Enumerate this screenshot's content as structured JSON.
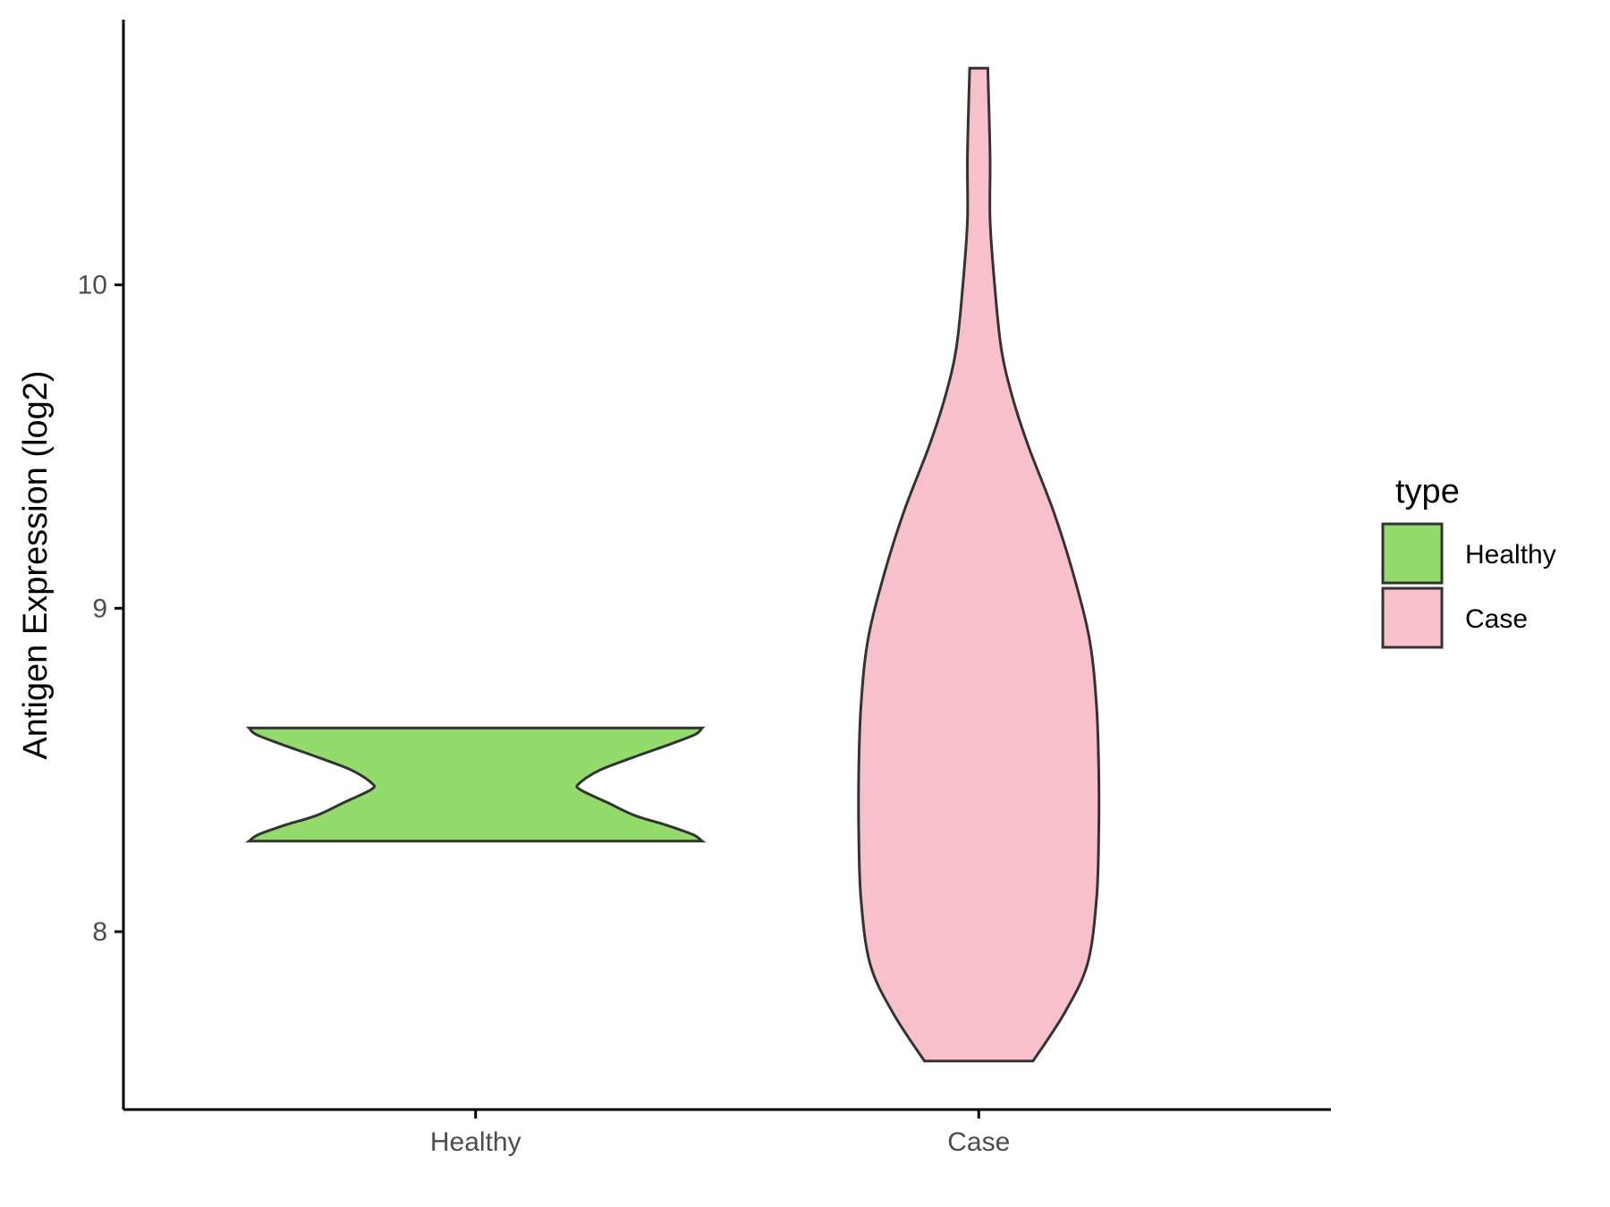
{
  "chart_data": {
    "type": "violin",
    "xlabel": "",
    "ylabel": "Antigen Expression (log2)",
    "categories": [
      "Healthy",
      "Case"
    ],
    "ylim": [
      7.45,
      10.82
    ],
    "yticks": [
      8,
      9,
      10
    ],
    "grid": false,
    "legend": {
      "title": "type",
      "position": "right",
      "entries": [
        {
          "label": "Healthy",
          "color": "#93DB6B"
        },
        {
          "label": "Case",
          "color": "#F8C0CB"
        }
      ]
    },
    "series": [
      {
        "name": "Healthy",
        "color": "#93DB6B",
        "min": 8.28,
        "max": 8.63,
        "density": [
          [
            8.28,
            1.0
          ],
          [
            8.3,
            0.96
          ],
          [
            8.33,
            0.84
          ],
          [
            8.36,
            0.7
          ],
          [
            8.4,
            0.58
          ],
          [
            8.44,
            0.46
          ],
          [
            8.46,
            0.46
          ],
          [
            8.5,
            0.55
          ],
          [
            8.54,
            0.7
          ],
          [
            8.58,
            0.86
          ],
          [
            8.61,
            0.97
          ],
          [
            8.63,
            1.0
          ]
        ]
      },
      {
        "name": "Case",
        "color": "#F8C0CB",
        "min": 7.6,
        "max": 10.67,
        "density": [
          [
            7.6,
            0.24
          ],
          [
            7.75,
            0.38
          ],
          [
            7.9,
            0.48
          ],
          [
            8.1,
            0.52
          ],
          [
            8.3,
            0.53
          ],
          [
            8.5,
            0.53
          ],
          [
            8.7,
            0.52
          ],
          [
            8.9,
            0.49
          ],
          [
            9.1,
            0.42
          ],
          [
            9.3,
            0.33
          ],
          [
            9.5,
            0.22
          ],
          [
            9.65,
            0.15
          ],
          [
            9.8,
            0.1
          ],
          [
            10.0,
            0.07
          ],
          [
            10.2,
            0.05
          ],
          [
            10.4,
            0.05
          ],
          [
            10.67,
            0.04
          ]
        ]
      }
    ]
  }
}
